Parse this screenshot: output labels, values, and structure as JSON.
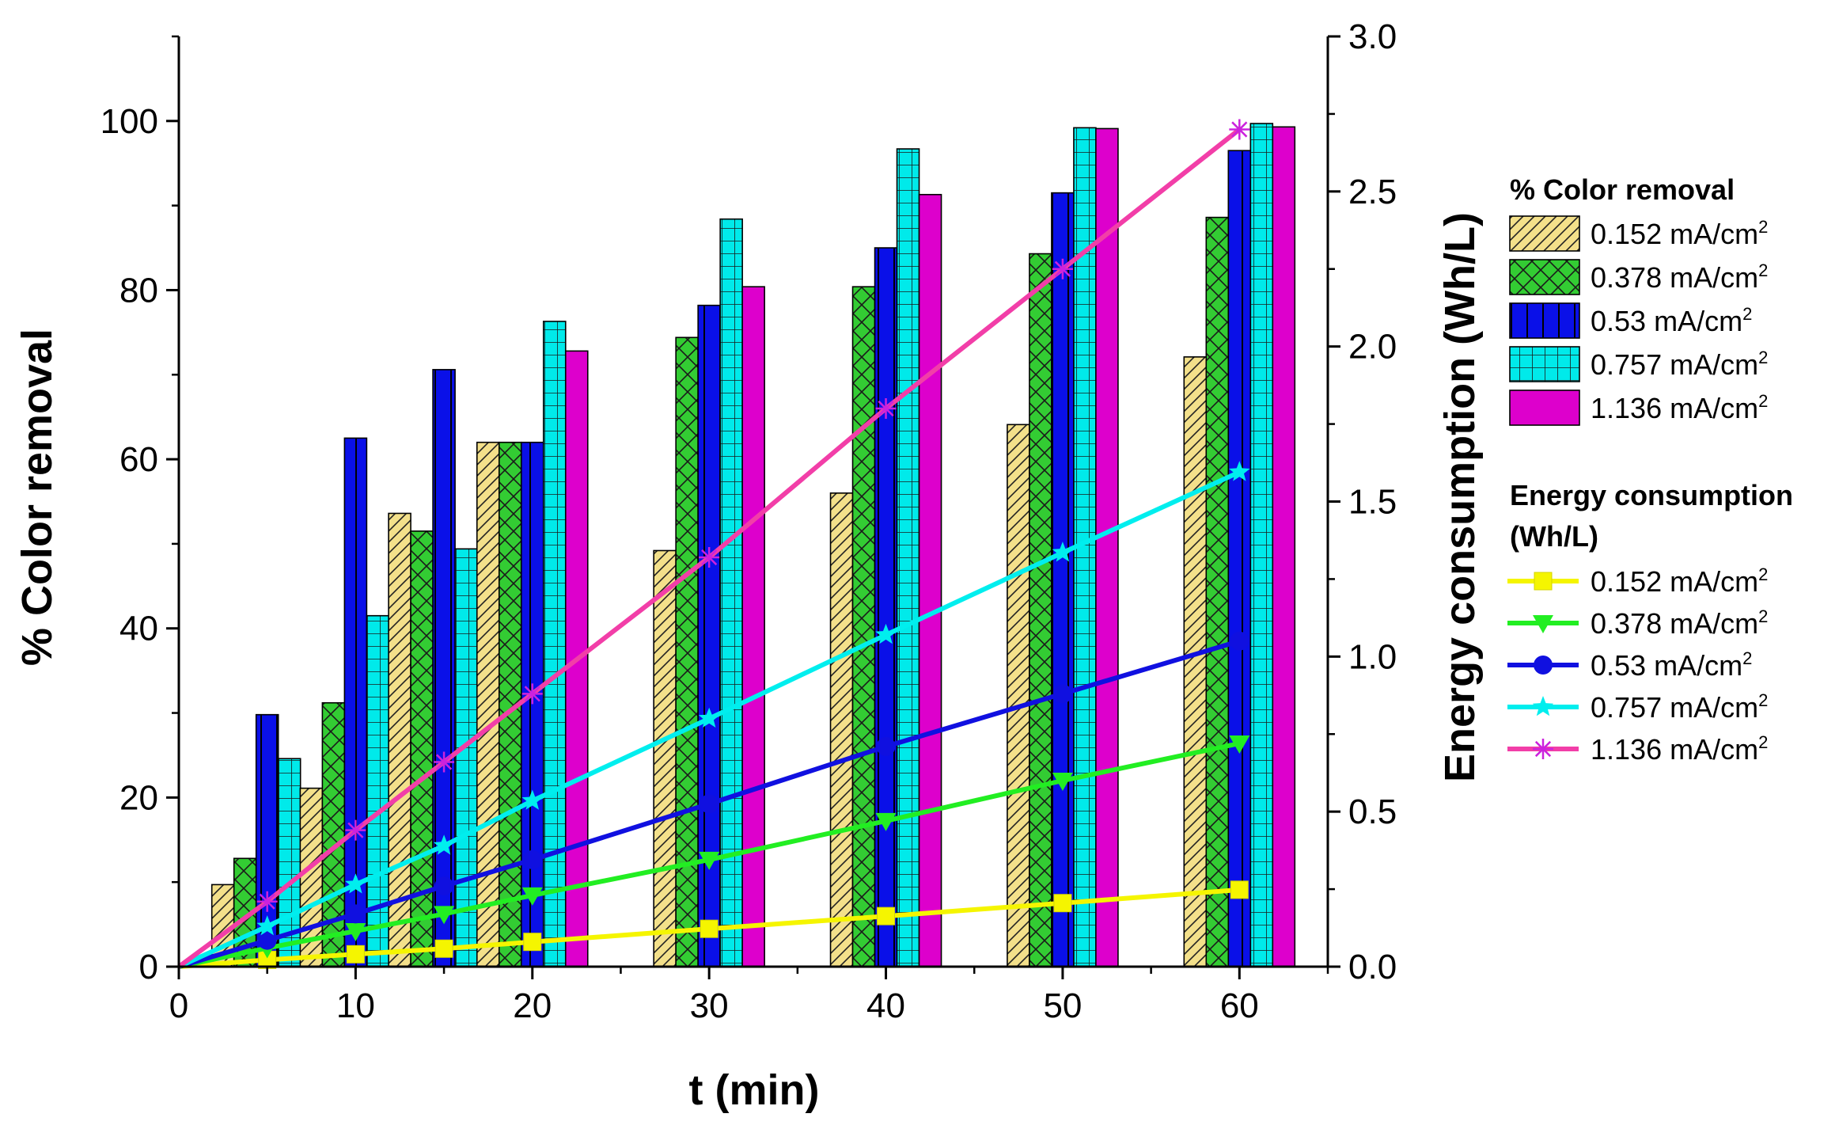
{
  "chart_data": {
    "type": "bar",
    "x_axis": {
      "label": "t (min)",
      "range": [
        0,
        65
      ],
      "ticks": [
        0,
        10,
        20,
        30,
        40,
        50,
        60
      ],
      "tick_labels": [
        "0",
        "10",
        "20",
        "30",
        "40",
        "50",
        "60"
      ]
    },
    "y_axis_left": {
      "label": "% Color removal",
      "range": [
        0,
        110
      ],
      "ticks": [
        0,
        20,
        40,
        60,
        80,
        100
      ],
      "tick_labels": [
        "0",
        "20",
        "40",
        "60",
        "80",
        "100"
      ]
    },
    "y_axis_right": {
      "label": "Energy consumption (Wh/L)",
      "range": [
        0,
        3.0
      ],
      "ticks": [
        0,
        0.5,
        1.0,
        1.5,
        2.0,
        2.5,
        3.0
      ],
      "tick_labels": [
        "0.0",
        "0.5",
        "1.0",
        "1.5",
        "2.0",
        "2.5",
        "3.0"
      ]
    },
    "bar_legend_title": "% Color removal",
    "line_legend_title": [
      "Energy consumption",
      "(Wh/L)"
    ],
    "categories": [
      5,
      10,
      15,
      20,
      30,
      40,
      50,
      60
    ],
    "bar_series": [
      {
        "name": "0.152 mA/cm²",
        "name_base": "0.152 mA/cm",
        "name_sup": "2",
        "color": "#f3e08a",
        "pattern": "diagonal",
        "values": [
          9.7,
          21.1,
          53.6,
          62.0,
          49.2,
          56.0,
          64.1,
          72.1
        ]
      },
      {
        "name": "0.378 mA/cm²",
        "name_base": "0.378 mA/cm",
        "name_sup": "2",
        "color": "#33cc33",
        "pattern": "crosshatch",
        "values": [
          12.8,
          31.2,
          51.5,
          62.0,
          74.4,
          80.4,
          84.3,
          88.6
        ]
      },
      {
        "name": "0.53 mA/cm²",
        "name_base": "0.53 mA/cm",
        "name_sup": "2",
        "color": "#0a10e8",
        "pattern": "vertical",
        "values": [
          29.8,
          62.5,
          70.6,
          62.0,
          78.2,
          85.0,
          91.5,
          96.5
        ]
      },
      {
        "name": "0.757 mA/cm²",
        "name_base": "0.757 mA/cm",
        "name_sup": "2",
        "color": "#00eaea",
        "pattern": "grid",
        "values": [
          24.6,
          41.5,
          49.4,
          76.3,
          88.4,
          96.7,
          99.2,
          99.7
        ]
      },
      {
        "name": "1.136 mA/cm²",
        "name_base": "1.136 mA/cm",
        "name_sup": "2",
        "color": "#dd00cc",
        "pattern": "solid",
        "values": [
          0,
          0,
          0,
          72.8,
          80.4,
          91.3,
          99.1,
          99.3
        ]
      }
    ],
    "line_series": [
      {
        "name": "0.152 mA/cm²",
        "name_base": "0.152 mA/cm",
        "name_sup": "2",
        "color": "#f5f500",
        "marker": "square",
        "x": [
          0,
          5,
          10,
          15,
          20,
          30,
          40,
          50,
          60
        ],
        "y": [
          0,
          0.022,
          0.04,
          0.058,
          0.08,
          0.122,
          0.163,
          0.205,
          0.248
        ]
      },
      {
        "name": "0.378 mA/cm²",
        "name_base": "0.378 mA/cm",
        "name_sup": "2",
        "color": "#22ee22",
        "marker": "triangle-down",
        "x": [
          0,
          5,
          10,
          15,
          20,
          30,
          40,
          50,
          60
        ],
        "y": [
          0,
          0.06,
          0.115,
          0.17,
          0.23,
          0.345,
          0.47,
          0.6,
          0.72
        ]
      },
      {
        "name": "0.53 mA/cm²",
        "name_base": "0.53 mA/cm",
        "name_sup": "2",
        "color": "#1010e0",
        "marker": "circle",
        "x": [
          0,
          5,
          10,
          15,
          20,
          30,
          40,
          50,
          60
        ],
        "y": [
          0,
          0.085,
          0.17,
          0.26,
          0.345,
          0.525,
          0.71,
          0.88,
          1.05
        ]
      },
      {
        "name": "0.757 mA/cm²",
        "name_base": "0.757 mA/cm",
        "name_sup": "2",
        "color": "#00eeee",
        "marker": "star",
        "x": [
          0,
          5,
          10,
          15,
          20,
          30,
          40,
          50,
          60
        ],
        "y": [
          0,
          0.13,
          0.265,
          0.39,
          0.535,
          0.8,
          1.07,
          1.335,
          1.595
        ]
      },
      {
        "name": "1.136 mA/cm²",
        "name_base": "1.136 mA/cm",
        "name_sup": "2",
        "color": "#f23ea8",
        "marker": "asterisk",
        "x": [
          0,
          5,
          10,
          15,
          20,
          30,
          40,
          50,
          60
        ],
        "y": [
          0,
          0.21,
          0.44,
          0.66,
          0.88,
          1.32,
          1.8,
          2.25,
          2.7
        ]
      }
    ],
    "grid": false,
    "legend_position": "right"
  }
}
